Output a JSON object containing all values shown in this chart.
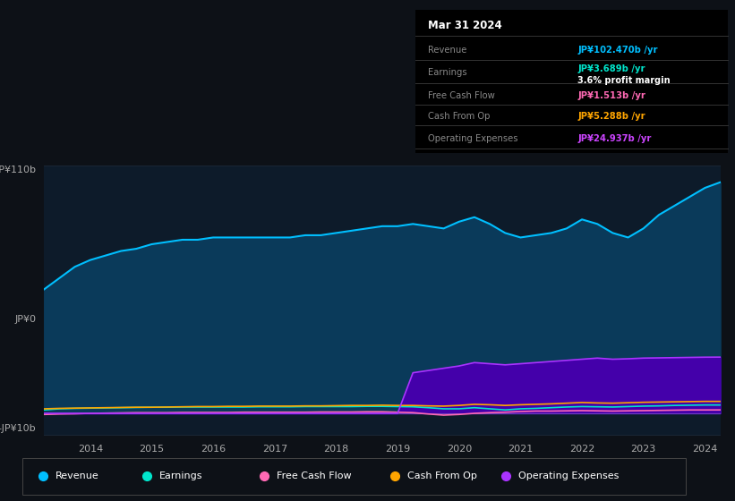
{
  "bg_color": "#0d1117",
  "chart_bg": "#0d1b2a",
  "title": "Mar 31 2024",
  "years": [
    2013.25,
    2013.5,
    2013.75,
    2014.0,
    2014.25,
    2014.5,
    2014.75,
    2015.0,
    2015.25,
    2015.5,
    2015.75,
    2016.0,
    2016.25,
    2016.5,
    2016.75,
    2017.0,
    2017.25,
    2017.5,
    2017.75,
    2018.0,
    2018.25,
    2018.5,
    2018.75,
    2019.0,
    2019.25,
    2019.5,
    2019.75,
    2020.0,
    2020.25,
    2020.5,
    2020.75,
    2021.0,
    2021.25,
    2021.5,
    2021.75,
    2022.0,
    2022.25,
    2022.5,
    2022.75,
    2023.0,
    2023.25,
    2023.5,
    2023.75,
    2024.0,
    2024.25
  ],
  "revenue": [
    55,
    60,
    65,
    68,
    70,
    72,
    73,
    75,
    76,
    77,
    77,
    78,
    78,
    78,
    78,
    78,
    78,
    79,
    79,
    80,
    81,
    82,
    83,
    83,
    84,
    83,
    82,
    85,
    87,
    84,
    80,
    78,
    79,
    80,
    82,
    86,
    84,
    80,
    78,
    82,
    88,
    92,
    96,
    100,
    102.5
  ],
  "earnings": [
    1.5,
    2.0,
    2.2,
    2.3,
    2.4,
    2.5,
    2.6,
    2.7,
    2.7,
    2.8,
    2.8,
    2.8,
    2.8,
    2.8,
    2.9,
    2.9,
    2.9,
    3.0,
    3.0,
    3.0,
    3.0,
    3.1,
    3.1,
    3.0,
    2.9,
    2.5,
    2.0,
    2.0,
    2.5,
    2.0,
    1.5,
    2.0,
    2.2,
    2.5,
    2.8,
    3.0,
    2.9,
    2.8,
    3.0,
    3.2,
    3.3,
    3.5,
    3.6,
    3.7,
    3.689
  ],
  "free_cash_flow": [
    -0.5,
    -0.3,
    -0.2,
    0.0,
    0.1,
    0.2,
    0.3,
    0.3,
    0.3,
    0.4,
    0.4,
    0.4,
    0.4,
    0.5,
    0.5,
    0.5,
    0.5,
    0.5,
    0.6,
    0.6,
    0.6,
    0.7,
    0.7,
    0.5,
    0.3,
    -0.3,
    -0.8,
    -0.5,
    0.0,
    0.3,
    0.5,
    0.8,
    1.0,
    1.0,
    1.1,
    1.2,
    1.1,
    1.0,
    1.1,
    1.2,
    1.3,
    1.4,
    1.5,
    1.5,
    1.513
  ],
  "cash_from_op": [
    2.0,
    2.2,
    2.3,
    2.4,
    2.5,
    2.6,
    2.7,
    2.7,
    2.8,
    2.9,
    3.0,
    3.0,
    3.1,
    3.1,
    3.2,
    3.2,
    3.2,
    3.3,
    3.3,
    3.4,
    3.5,
    3.5,
    3.6,
    3.5,
    3.5,
    3.3,
    3.2,
    3.5,
    4.0,
    3.8,
    3.5,
    3.8,
    4.0,
    4.2,
    4.5,
    4.8,
    4.6,
    4.5,
    4.7,
    4.9,
    5.0,
    5.1,
    5.2,
    5.3,
    5.288
  ],
  "operating_expenses": [
    0.0,
    0.0,
    0.0,
    0.0,
    0.0,
    0.0,
    0.0,
    0.0,
    0.0,
    0.0,
    0.0,
    0.0,
    0.0,
    0.0,
    0.0,
    0.0,
    0.0,
    0.0,
    0.0,
    0.0,
    0.0,
    0.0,
    0.0,
    0.0,
    18.0,
    19.0,
    20.0,
    21.0,
    22.5,
    22.0,
    21.5,
    22.0,
    22.5,
    23.0,
    23.5,
    24.0,
    24.5,
    24.0,
    24.2,
    24.5,
    24.6,
    24.7,
    24.8,
    24.9,
    24.937
  ],
  "ylim": [
    -10,
    110
  ],
  "ytick_labels": [
    "-JP¥10b",
    "JP¥0",
    "JP¥110b"
  ],
  "xtick_years": [
    2014,
    2015,
    2016,
    2017,
    2018,
    2019,
    2020,
    2021,
    2022,
    2023,
    2024
  ],
  "revenue_color": "#00bfff",
  "earnings_color": "#00e5cc",
  "fcf_color": "#ff69b4",
  "cashop_color": "#ffa500",
  "opex_color": "#aa33ff",
  "revenue_fill": "#0a3a5a",
  "opex_fill": "#4400aa",
  "table_rows": [
    {
      "label": "Revenue",
      "value": "JP¥102.470b /yr",
      "color": "#00bfff",
      "extra": null
    },
    {
      "label": "Earnings",
      "value": "JP¥3.689b /yr",
      "color": "#00e5cc",
      "extra": "3.6% profit margin"
    },
    {
      "label": "Free Cash Flow",
      "value": "JP¥1.513b /yr",
      "color": "#ff69b4",
      "extra": null
    },
    {
      "label": "Cash From Op",
      "value": "JP¥5.288b /yr",
      "color": "#ffa500",
      "extra": null
    },
    {
      "label": "Operating Expenses",
      "value": "JP¥24.937b /yr",
      "color": "#cc44ff",
      "extra": null
    }
  ],
  "legend_items": [
    {
      "label": "Revenue",
      "color": "#00bfff"
    },
    {
      "label": "Earnings",
      "color": "#00e5cc"
    },
    {
      "label": "Free Cash Flow",
      "color": "#ff69b4"
    },
    {
      "label": "Cash From Op",
      "color": "#ffa500"
    },
    {
      "label": "Operating Expenses",
      "color": "#aa33ff"
    }
  ]
}
